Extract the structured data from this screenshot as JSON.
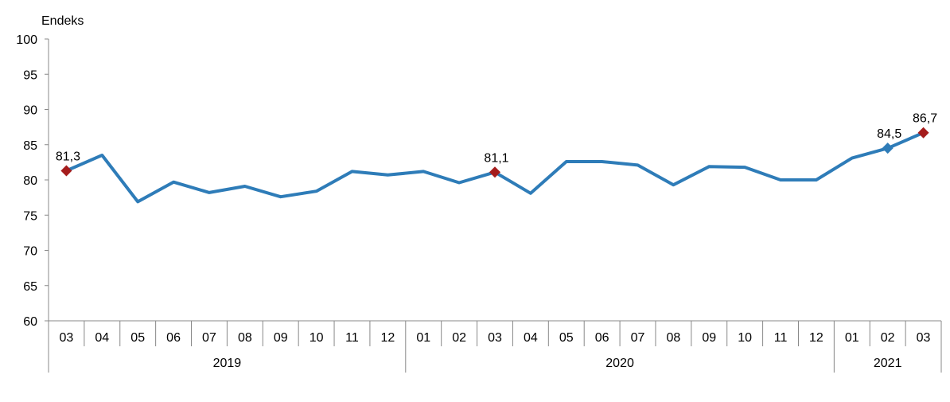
{
  "chart_data": {
    "type": "line",
    "ylabel": "Endeks",
    "ylim": [
      60,
      100
    ],
    "y_ticks": [
      "60",
      "65",
      "70",
      "75",
      "80",
      "85",
      "90",
      "95",
      "100"
    ],
    "x": [
      "03",
      "04",
      "05",
      "06",
      "07",
      "08",
      "09",
      "10",
      "11",
      "12",
      "01",
      "02",
      "03",
      "04",
      "05",
      "06",
      "07",
      "08",
      "09",
      "10",
      "11",
      "12",
      "01",
      "02",
      "03"
    ],
    "year_groups": [
      {
        "label": "2019",
        "count": 10
      },
      {
        "label": "2020",
        "count": 12
      },
      {
        "label": "2021",
        "count": 3
      }
    ],
    "series": [
      {
        "values": [
          81.3,
          83.5,
          76.9,
          79.7,
          78.2,
          79.1,
          77.6,
          78.4,
          81.2,
          80.7,
          81.2,
          79.6,
          81.1,
          78.1,
          82.6,
          82.6,
          82.1,
          79.3,
          81.9,
          81.8,
          80.0,
          80.0,
          83.1,
          84.5,
          86.7
        ],
        "color": "#2e7cb8"
      }
    ],
    "markers": [
      {
        "index": 0,
        "label": "81,3",
        "color": "#a51c1c"
      },
      {
        "index": 12,
        "label": "81,1",
        "color": "#a51c1c"
      },
      {
        "index": 23,
        "label": "84,5",
        "color": "#2e7cb8"
      },
      {
        "index": 24,
        "label": "86,7",
        "color": "#a51c1c"
      }
    ],
    "grid": false,
    "legend": "none"
  }
}
